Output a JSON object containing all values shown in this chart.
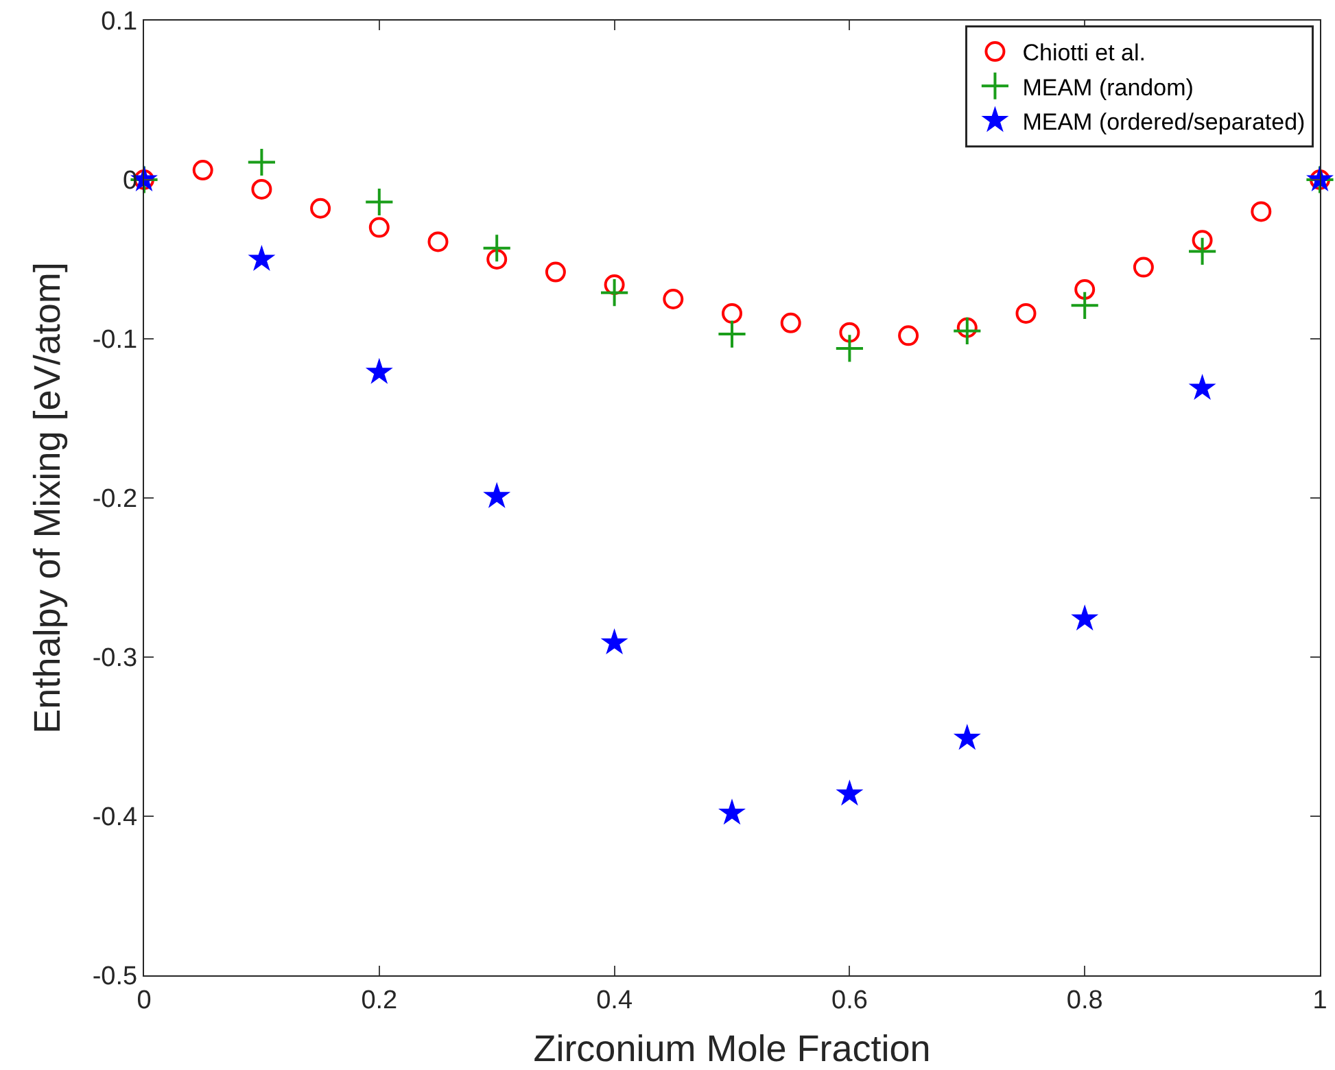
{
  "chart_data": {
    "type": "scatter",
    "xlabel": "Zirconium Mole Fraction",
    "ylabel": "Enthalpy of Mixing [eV/atom]",
    "xlim": [
      0,
      1
    ],
    "xticks": [
      0,
      0.2,
      0.4,
      0.6,
      0.8,
      1
    ],
    "ylim": [
      -0.5,
      0.1
    ],
    "yticks": [
      -0.5,
      -0.4,
      -0.3,
      -0.2,
      -0.1,
      0,
      0.1
    ],
    "legend": "top right",
    "series": [
      {
        "name": "Chiotti et al.",
        "color": "#ff0000",
        "marker": "circle",
        "x": [
          0,
          0.05,
          0.1,
          0.15,
          0.2,
          0.25,
          0.3,
          0.35,
          0.4,
          0.45,
          0.5,
          0.55,
          0.6,
          0.65,
          0.7,
          0.75,
          0.8,
          0.85,
          0.9,
          0.95,
          1
        ],
        "values": [
          0,
          0.006,
          -0.006,
          -0.018,
          -0.03,
          -0.039,
          -0.05,
          -0.058,
          -0.066,
          -0.075,
          -0.084,
          -0.09,
          -0.096,
          -0.098,
          -0.093,
          -0.084,
          -0.069,
          -0.055,
          -0.038,
          -0.02,
          0
        ]
      },
      {
        "name": "MEAM (random)",
        "color": "#1a9e1a",
        "marker": "cross",
        "x": [
          0,
          0.1,
          0.2,
          0.3,
          0.4,
          0.5,
          0.6,
          0.7,
          0.8,
          0.9,
          1
        ],
        "values": [
          0,
          0.011,
          -0.014,
          -0.043,
          -0.071,
          -0.097,
          -0.106,
          -0.095,
          -0.079,
          -0.045,
          0
        ]
      },
      {
        "name": "MEAM (ordered/separated)",
        "color": "#0000ff",
        "marker": "star",
        "x": [
          0,
          0.1,
          0.2,
          0.3,
          0.4,
          0.5,
          0.6,
          0.7,
          0.8,
          0.9,
          1
        ],
        "values": [
          0,
          -0.05,
          -0.121,
          -0.199,
          -0.291,
          -0.398,
          -0.386,
          -0.351,
          -0.276,
          -0.131,
          0
        ]
      }
    ]
  }
}
